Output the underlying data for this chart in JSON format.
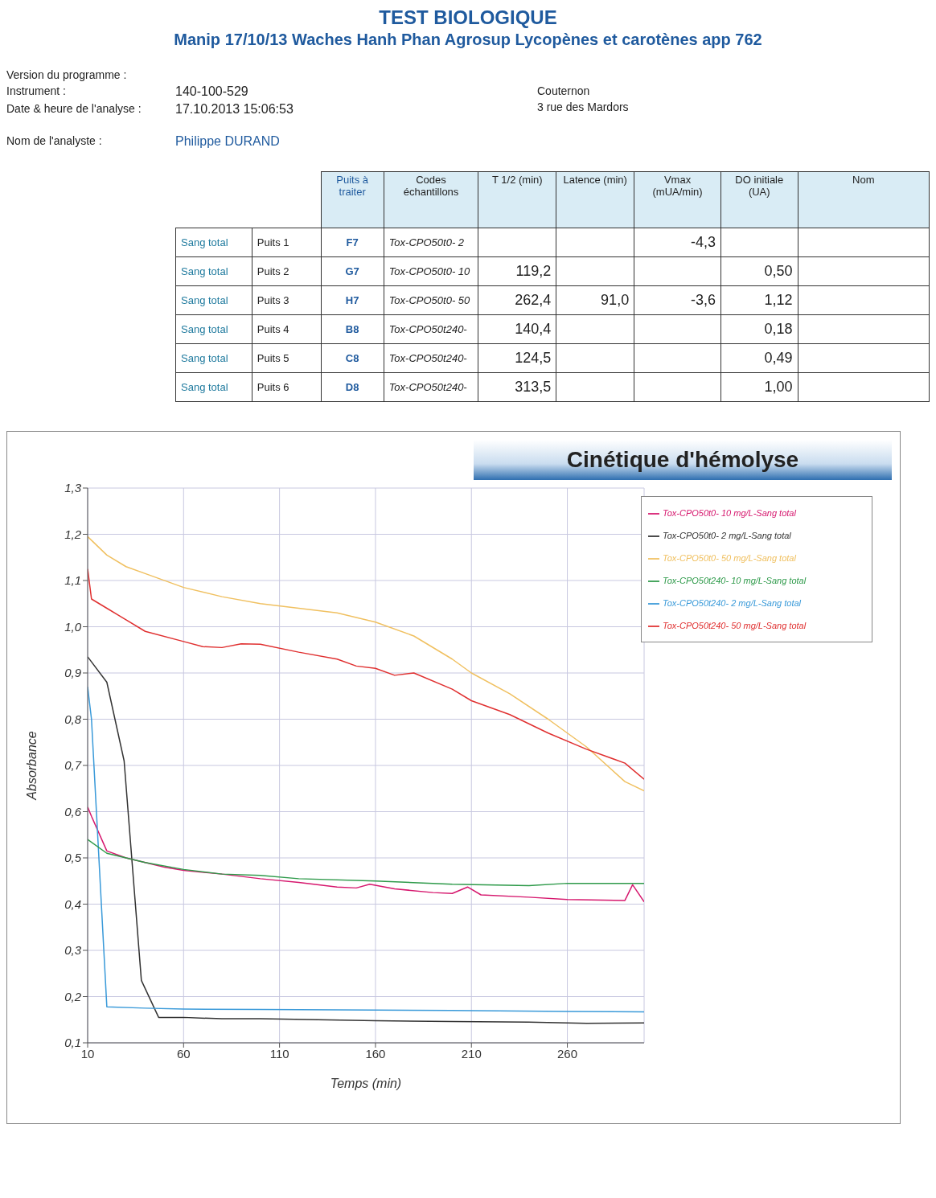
{
  "chart_data": {
    "type": "line",
    "title": "Cinétique d'hémolyse",
    "xlabel": "Temps (min)",
    "ylabel": "Absorbance",
    "annotations": [
      "TEST BIOLOGIQUE",
      "Manip 17/10/13 Waches Hanh Phan Agrosup Lycopènes et carotènes app 762",
      "Version du programme :",
      "Instrument :",
      "140-100-529",
      "Date & heure de l'analyse :",
      "17.10.2013 15:06:53",
      "Nom de l'analyste :",
      "Philippe DURAND",
      "Couternon",
      "3 rue des Mardors",
      "Puits à traiter",
      "Codes échantillons",
      "T 1/2 (min)",
      "Latence (min)",
      "Vmax (mUA/min)",
      "DO initiale (UA)",
      "Nom",
      "Sang total",
      "Puits 1",
      "F7",
      "Tox-CPO50t0- 2",
      "-4,3",
      "Sang total",
      "Puits 2",
      "G7",
      "Tox-CPO50t0- 10",
      "119,2",
      "0,50",
      "Sang total",
      "Puits 3",
      "H7",
      "Tox-CPO50t0- 50",
      "262,4",
      "91,0",
      "-3,6",
      "1,12",
      "Sang total",
      "Puits 4",
      "B8",
      "Tox-CPO50t240-",
      "140,4",
      "0,18",
      "Sang total",
      "Puits 5",
      "C8",
      "Tox-CPO50t240-",
      "124,5",
      "0,49",
      "Sang total",
      "Puits 6",
      "D8",
      "Tox-CPO50t240-",
      "313,5",
      "1,00"
    ],
    "xlim": [
      10,
      300
    ],
    "xticks": [
      10,
      60,
      110,
      160,
      210,
      260
    ],
    "ylim": [
      0.1,
      1.3
    ],
    "yticks": [
      {
        "value": 0.1,
        "label": "0,1"
      },
      {
        "value": 0.2,
        "label": "0,2"
      },
      {
        "value": 0.3,
        "label": "0,3"
      },
      {
        "value": 0.4,
        "label": "0,4"
      },
      {
        "value": 0.5,
        "label": "0,5"
      },
      {
        "value": 0.6,
        "label": "0,6"
      },
      {
        "value": 0.7,
        "label": "0,7"
      },
      {
        "value": 0.8,
        "label": "0,8"
      },
      {
        "value": 0.9,
        "label": "0,9"
      },
      {
        "value": 1.0,
        "label": "1,0"
      },
      {
        "value": 1.1,
        "label": "1,1"
      },
      {
        "value": 1.2,
        "label": "1,2"
      },
      {
        "value": 1.3,
        "label": "1,3"
      }
    ],
    "grid": true,
    "legend": "top right",
    "marker": "none",
    "line_style": "solid",
    "series": [
      {
        "name": "Tox-CPO50t0- 2 mg/L-Sang total",
        "color": "#333333",
        "x": [
          10,
          20,
          29,
          38,
          47,
          60,
          80,
          100,
          130,
          160,
          200,
          240,
          270,
          300
        ],
        "values": [
          0.935,
          0.88,
          0.71,
          0.235,
          0.155,
          0.155,
          0.152,
          0.152,
          0.15,
          0.148,
          0.146,
          0.145,
          0.142,
          0.143
        ]
      },
      {
        "name": "Tox-CPO50t0- 10 mg/L-Sang total",
        "color": "#d6186e",
        "x": [
          10,
          12,
          20,
          30,
          40,
          50,
          60,
          80,
          100,
          120,
          140,
          150,
          157,
          170,
          190,
          200,
          208,
          215,
          240,
          260,
          290,
          294,
          300
        ],
        "values": [
          0.61,
          0.59,
          0.515,
          0.5,
          0.49,
          0.48,
          0.473,
          0.465,
          0.455,
          0.447,
          0.437,
          0.435,
          0.443,
          0.433,
          0.425,
          0.423,
          0.437,
          0.42,
          0.415,
          0.41,
          0.408,
          0.442,
          0.405
        ]
      },
      {
        "name": "Tox-CPO50t0- 50 mg/L-Sang total",
        "color": "#f0c060",
        "x": [
          10,
          20,
          30,
          40,
          60,
          80,
          100,
          120,
          140,
          160,
          180,
          200,
          210,
          230,
          250,
          270,
          290,
          300
        ],
        "values": [
          1.195,
          1.155,
          1.13,
          1.115,
          1.085,
          1.065,
          1.05,
          1.04,
          1.03,
          1.01,
          0.98,
          0.93,
          0.9,
          0.855,
          0.8,
          0.74,
          0.665,
          0.645
        ]
      },
      {
        "name": "Tox-CPO50t240- 2 mg/L-Sang total",
        "color": "#3a9ad9",
        "x": [
          10,
          12,
          20,
          40,
          60,
          100,
          160,
          200,
          260,
          300
        ],
        "values": [
          0.87,
          0.8,
          0.178,
          0.175,
          0.173,
          0.172,
          0.171,
          0.17,
          0.168,
          0.167
        ]
      },
      {
        "name": "Tox-CPO50t240- 10 mg/L-Sang total",
        "color": "#2e9a4a",
        "x": [
          10,
          20,
          40,
          60,
          80,
          100,
          120,
          160,
          200,
          240,
          260,
          300
        ],
        "values": [
          0.54,
          0.51,
          0.49,
          0.475,
          0.465,
          0.462,
          0.455,
          0.45,
          0.443,
          0.44,
          0.445,
          0.445
        ]
      },
      {
        "name": "Tox-CPO50t240- 50 mg/L-Sang total",
        "color": "#e03030",
        "x": [
          10,
          12,
          20,
          30,
          40,
          60,
          70,
          80,
          90,
          100,
          120,
          140,
          150,
          160,
          170,
          180,
          200,
          210,
          230,
          250,
          270,
          280,
          290,
          300
        ],
        "values": [
          1.125,
          1.06,
          1.04,
          1.015,
          0.99,
          0.968,
          0.957,
          0.955,
          0.963,
          0.962,
          0.945,
          0.93,
          0.915,
          0.91,
          0.895,
          0.9,
          0.865,
          0.84,
          0.81,
          0.77,
          0.735,
          0.72,
          0.705,
          0.67
        ]
      }
    ]
  }
}
